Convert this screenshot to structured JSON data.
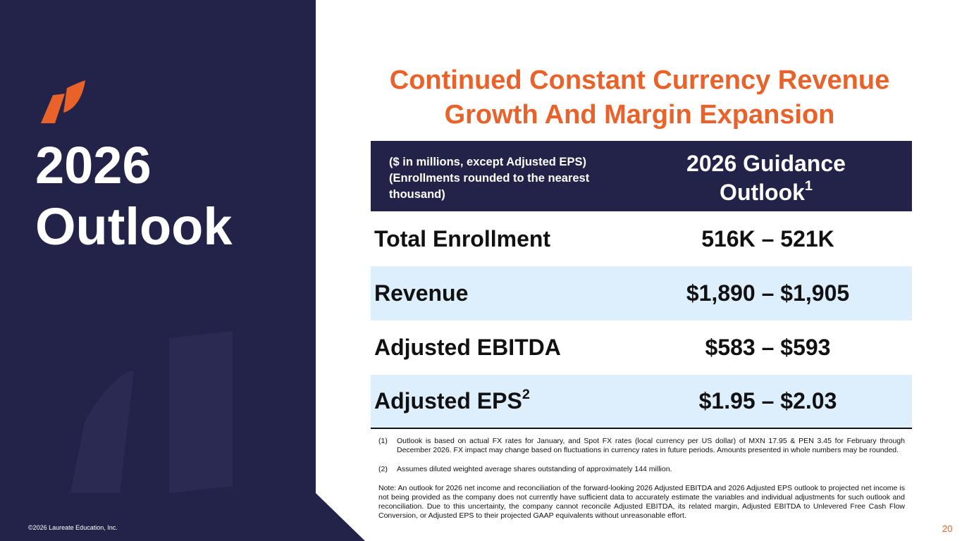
{
  "sidebar": {
    "title_line1": "2026",
    "title_line2": "Outlook"
  },
  "title": {
    "line1": "Continued Constant Currency Revenue",
    "line2": "Growth And Margin Expansion"
  },
  "table": {
    "header": {
      "note_lines": [
        "($ in millions, except Adjusted EPS)",
        "(Enrollments rounded to the nearest",
        "thousand)"
      ],
      "column_line1": "2026 Guidance",
      "column_line2": "Outlook",
      "column_sup": "1"
    },
    "rows": [
      {
        "label": "Total Enrollment",
        "value": "516K – 521K"
      },
      {
        "label": "Revenue",
        "value": "$1,890 – $1,905"
      },
      {
        "label": "Adjusted EBITDA",
        "value": "$583 – $593"
      },
      {
        "label": "Adjusted EPS",
        "sup": "2",
        "value": "$1.95 – $2.03"
      }
    ]
  },
  "footnotes": [
    {
      "marker": "(1)",
      "text": "Outlook is based on actual FX rates for January, and Spot FX rates (local currency per US dollar) of MXN 17.95 & PEN 3.45 for February through December 2026.  FX impact may change based on fluctuations in currency rates in future periods.  Amounts presented in whole numbers may be rounded."
    },
    {
      "marker": "(2)",
      "text": "Assumes diluted weighted average shares outstanding of approximately 144 million."
    }
  ],
  "note": "Note: An outlook for 2026 net income and reconciliation of the forward-looking 2026 Adjusted EBITDA and 2026 Adjusted EPS outlook to projected net income is not being provided as the company does not currently have sufficient data to accurately estimate the variables and individual adjustments for such outlook and reconciliation.  Due to this uncertainty, the company cannot reconcile Adjusted EBITDA, its related margin, Adjusted EBITDA to Unlevered Free Cash Flow Conversion, or Adjusted EPS to their projected GAAP equivalents without unreasonable effort.",
  "copyright": "©2026 Laureate Education, Inc.",
  "page_number": "20"
}
